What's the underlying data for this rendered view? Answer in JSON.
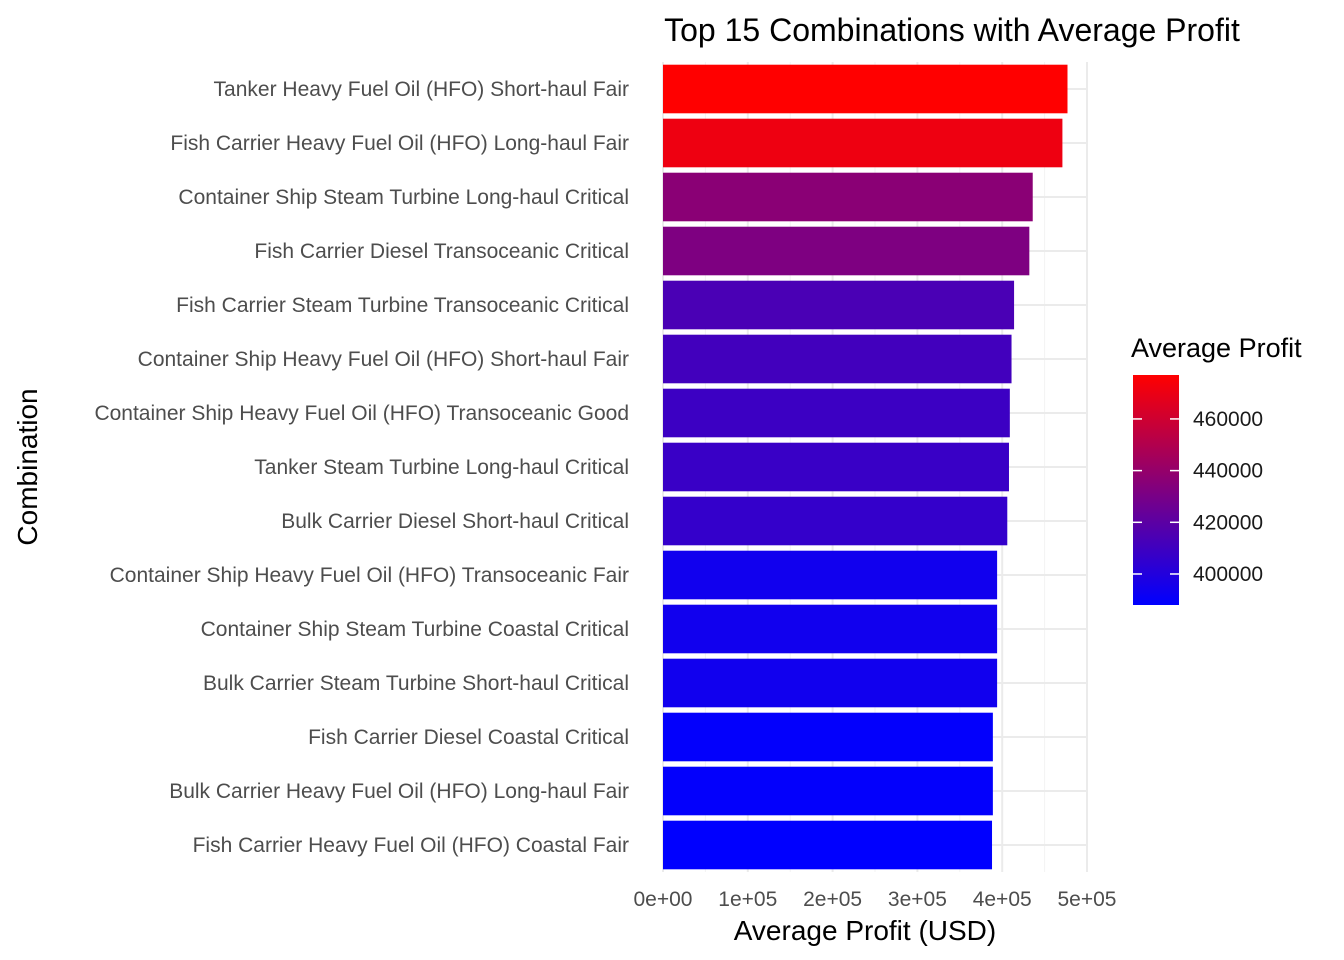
{
  "chart_data": {
    "type": "bar",
    "orientation": "horizontal",
    "title": "Top 15 Combinations with Average Profit",
    "xlabel": "Average Profit (USD)",
    "ylabel": "Combination",
    "xlim": [
      0,
      500000
    ],
    "x_ticks": [
      {
        "value": 0,
        "label": "0e+00"
      },
      {
        "value": 100000,
        "label": "1e+05"
      },
      {
        "value": 200000,
        "label": "2e+05"
      },
      {
        "value": 300000,
        "label": "3e+05"
      },
      {
        "value": 400000,
        "label": "4e+05"
      },
      {
        "value": 500000,
        "label": "5e+05"
      }
    ],
    "grid": true,
    "categories": [
      "Tanker Heavy Fuel Oil (HFO) Short-haul Fair",
      "Fish Carrier Heavy Fuel Oil (HFO) Long-haul Fair",
      "Container Ship Steam Turbine Long-haul Critical",
      "Fish Carrier Diesel Transoceanic Critical",
      "Fish Carrier Steam Turbine Transoceanic Critical",
      "Container Ship Heavy Fuel Oil (HFO) Short-haul Fair",
      "Container Ship Heavy Fuel Oil (HFO) Transoceanic Good",
      "Tanker Steam Turbine Long-haul Critical",
      "Bulk Carrier Diesel Short-haul Critical",
      "Container Ship Heavy Fuel Oil (HFO) Transoceanic Fair",
      "Container Ship Steam Turbine Coastal Critical",
      "Bulk Carrier Steam Turbine Short-haul Critical",
      "Fish Carrier Diesel Coastal Critical",
      "Bulk Carrier Heavy Fuel Oil (HFO) Long-haul Fair",
      "Fish Carrier Heavy Fuel Oil (HFO) Coastal Fair"
    ],
    "values": [
      477000,
      471000,
      436000,
      432000,
      414000,
      411000,
      409000,
      408000,
      406000,
      394000,
      394000,
      394000,
      389000,
      389000,
      388000
    ],
    "color_scale": {
      "low_color": "#0000ff",
      "high_color": "#ff0000",
      "min": 388000,
      "max": 477000
    },
    "legend": {
      "title": "Average Profit",
      "placement": "right",
      "ticks": [
        {
          "value": 400000,
          "label": "400000"
        },
        {
          "value": 420000,
          "label": "420000"
        },
        {
          "value": 440000,
          "label": "440000"
        },
        {
          "value": 460000,
          "label": "460000"
        }
      ]
    }
  }
}
